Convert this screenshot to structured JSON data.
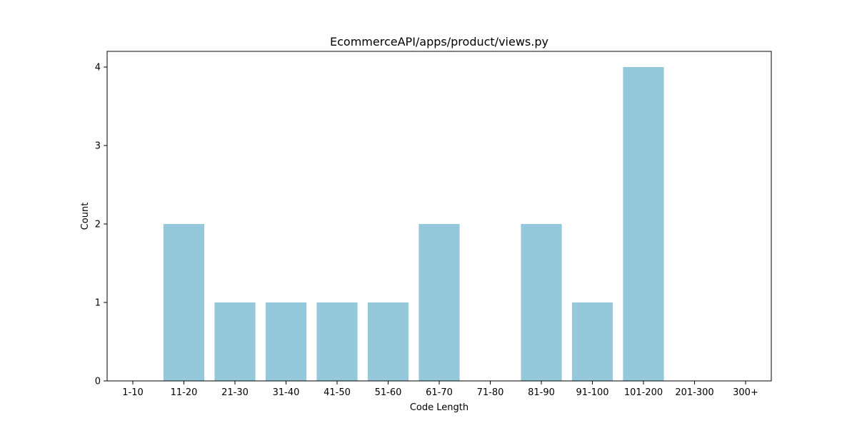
{
  "chart_data": {
    "type": "bar",
    "title": "EcommerceAPI/apps/product/views.py",
    "xlabel": "Code Length",
    "ylabel": "Count",
    "categories": [
      "1-10",
      "11-20",
      "21-30",
      "31-40",
      "41-50",
      "51-60",
      "61-70",
      "71-80",
      "81-90",
      "91-100",
      "101-200",
      "201-300",
      "300+"
    ],
    "values": [
      0,
      2,
      1,
      1,
      1,
      1,
      2,
      0,
      2,
      1,
      4,
      0,
      0
    ],
    "ylim": [
      0,
      4.2
    ],
    "yticks": [
      0,
      1,
      2,
      3,
      4
    ],
    "grid": false,
    "bar_color": "#96c8dc"
  }
}
